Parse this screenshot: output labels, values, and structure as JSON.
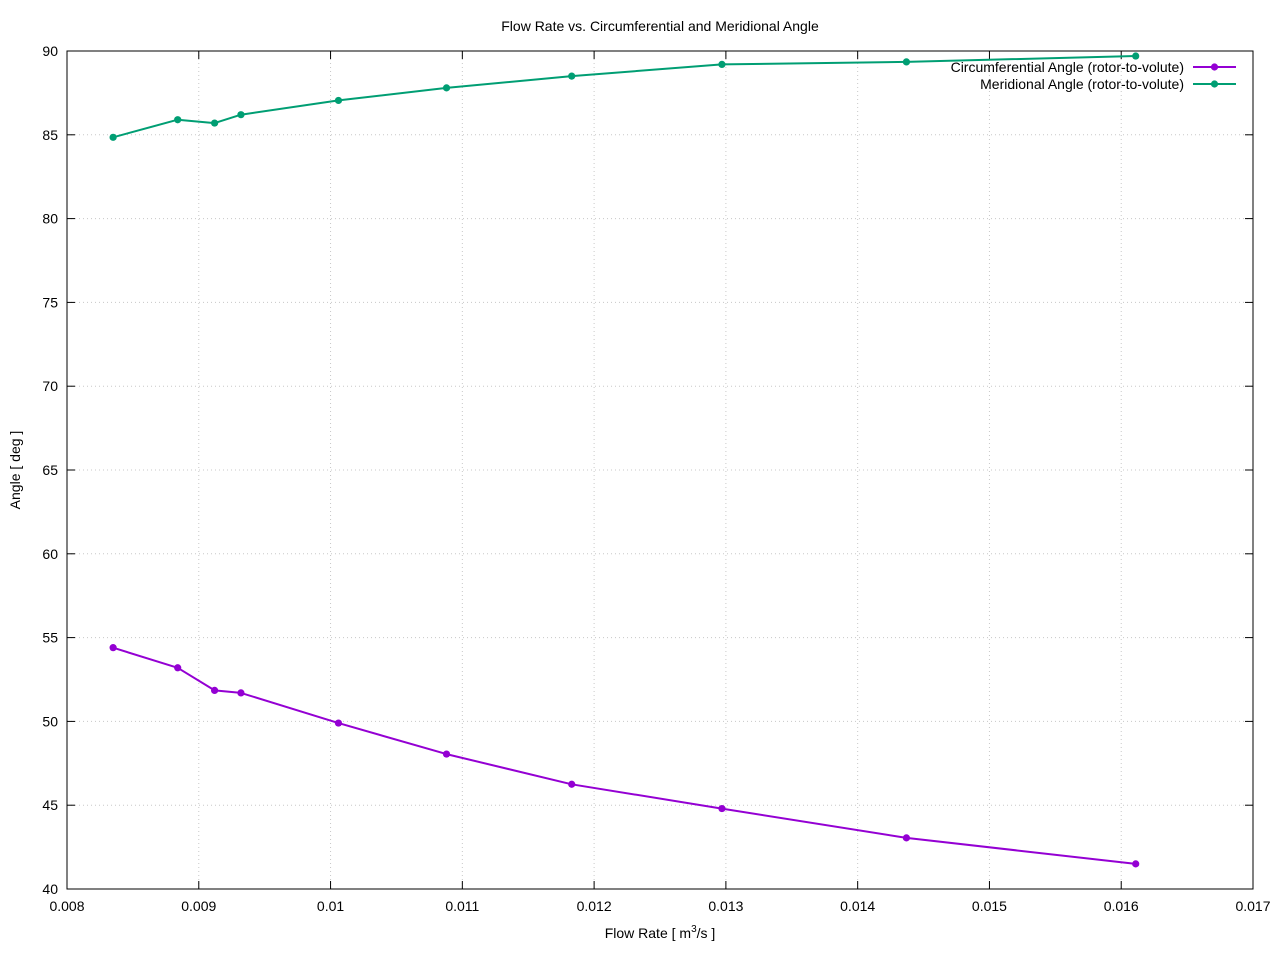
{
  "chart_data": {
    "type": "line",
    "title": "Flow Rate vs. Circumferential and Meridional Angle",
    "xlabel_main": "Flow Rate [ m",
    "xlabel_sup": "3",
    "xlabel_tail": "/s ]",
    "ylabel": "Angle [ deg ]",
    "xlim": [
      0.008,
      0.017
    ],
    "ylim": [
      40,
      90
    ],
    "x_ticks": [
      "0.008",
      "0.009",
      "0.01",
      "0.011",
      "0.012",
      "0.013",
      "0.014",
      "0.015",
      "0.016",
      "0.017"
    ],
    "y_ticks": [
      "40",
      "45",
      "50",
      "55",
      "60",
      "65",
      "70",
      "75",
      "80",
      "85",
      "90"
    ],
    "grid": true,
    "legend_position": "top-right",
    "series": [
      {
        "name": "Circumferential Angle (rotor-to-volute)",
        "color": "#9400d3",
        "x": [
          0.00835,
          0.00884,
          0.00912,
          0.00932,
          0.01006,
          0.01088,
          0.01183,
          0.01297,
          0.01437,
          0.01611
        ],
        "y": [
          54.4,
          53.2,
          51.85,
          51.7,
          49.9,
          48.05,
          46.25,
          44.8,
          43.05,
          41.5
        ]
      },
      {
        "name": "Meridional Angle (rotor-to-volute)",
        "color": "#009e73",
        "x": [
          0.00835,
          0.00884,
          0.00912,
          0.00932,
          0.01006,
          0.01088,
          0.01183,
          0.01297,
          0.01437,
          0.01611
        ],
        "y": [
          84.85,
          85.9,
          85.7,
          86.2,
          87.05,
          87.8,
          88.5,
          89.2,
          89.35,
          89.7
        ]
      }
    ]
  }
}
